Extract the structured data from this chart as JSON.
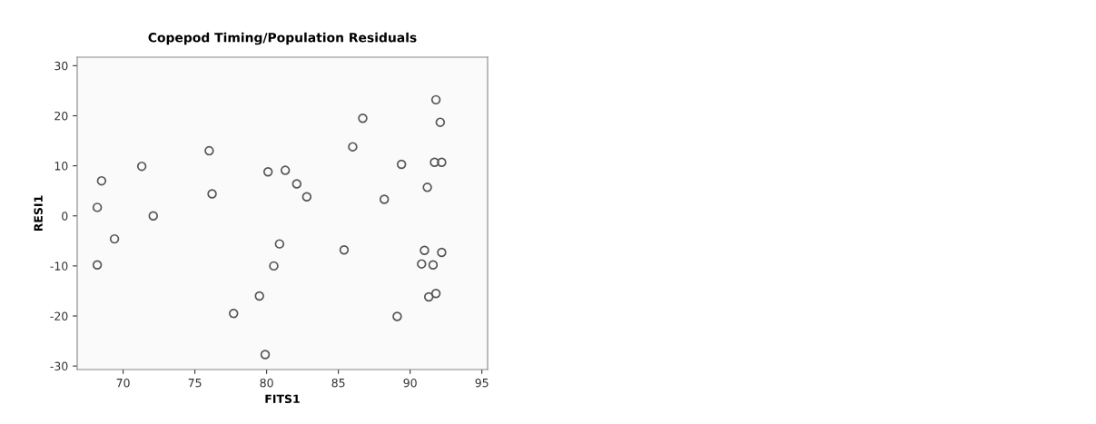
{
  "chart_data": {
    "type": "scatter",
    "title": "Copepod Timing/Population Residuals",
    "xlabel": "FITS1",
    "ylabel": "RESI1",
    "x": [
      68.2,
      68.5,
      68.2,
      69.4,
      71.3,
      72.1,
      76.0,
      76.2,
      77.7,
      79.5,
      79.9,
      80.1,
      80.5,
      80.9,
      81.3,
      82.1,
      82.8,
      85.4,
      86.0,
      86.7,
      88.2,
      89.1,
      89.4,
      90.8,
      91.0,
      91.2,
      91.3,
      91.6,
      91.7,
      91.8,
      91.8,
      92.1,
      92.2,
      92.2
    ],
    "series": [
      {
        "color": "#555555",
        "values": [
          1.7,
          7.0,
          -9.8,
          -4.6,
          9.9,
          0,
          13.0,
          4.4,
          -19.5,
          -16.0,
          -27.7,
          8.8,
          -10.0,
          -5.6,
          9.1,
          6.4,
          3.8,
          -6.8,
          13.8,
          19.5,
          3.3,
          -20.1,
          10.3,
          -9.6,
          -6.9,
          5.7,
          -16.2,
          -9.8,
          10.7,
          23.2,
          -15.5,
          18.7,
          10.7,
          -7.3
        ]
      }
    ],
    "xlim": [
      66.8,
      95.4
    ],
    "ylim": [
      -30.7,
      31.7
    ],
    "xticks": [
      70,
      75,
      80,
      85,
      90,
      95
    ],
    "yticks": [
      -30,
      -20,
      -10,
      0,
      10,
      20,
      30
    ],
    "marker": "circle",
    "grid": false,
    "legend": false
  }
}
